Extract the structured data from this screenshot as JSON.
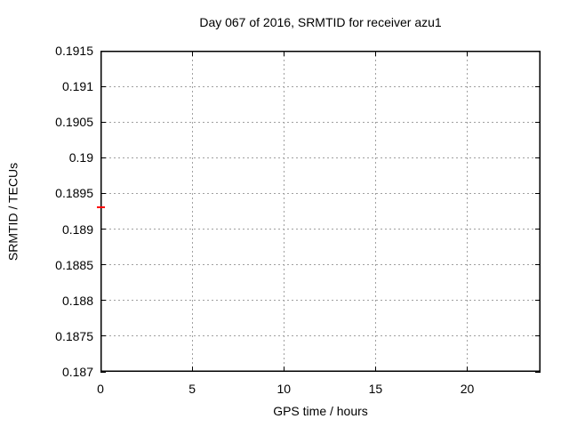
{
  "chart_data": {
    "type": "scatter",
    "title": "Day 067 of 2016, SRMTID for receiver azu1",
    "xlabel": "GPS time / hours",
    "ylabel": "SRMTID / TECUs",
    "xlim": [
      0,
      24
    ],
    "ylim": [
      0.187,
      0.1915
    ],
    "grid": true,
    "legend": "none",
    "xticks": [
      {
        "value": 0,
        "label": "0"
      },
      {
        "value": 5,
        "label": "5"
      },
      {
        "value": 10,
        "label": "10"
      },
      {
        "value": 15,
        "label": "15"
      },
      {
        "value": 20,
        "label": "20"
      }
    ],
    "yticks": [
      {
        "value": 0.187,
        "label": "0.187"
      },
      {
        "value": 0.1875,
        "label": "0.1875"
      },
      {
        "value": 0.188,
        "label": "0.188"
      },
      {
        "value": 0.1885,
        "label": "0.1885"
      },
      {
        "value": 0.189,
        "label": "0.189"
      },
      {
        "value": 0.1895,
        "label": "0.1895"
      },
      {
        "value": 0.19,
        "label": "0.19"
      },
      {
        "value": 0.1905,
        "label": "0.1905"
      },
      {
        "value": 0.191,
        "label": "0.191"
      },
      {
        "value": 0.1915,
        "label": "0.1915"
      }
    ],
    "series": [
      {
        "name": "SRMTID",
        "marker": "horizontal-dash",
        "color": "#ff0000",
        "points": [
          {
            "x": 0,
            "y": 0.1893
          }
        ]
      }
    ]
  },
  "colors": {
    "background": "#ffffff",
    "border": "#000000",
    "grid": "#a0a0a0",
    "text": "#000000",
    "point": "#ff0000"
  }
}
